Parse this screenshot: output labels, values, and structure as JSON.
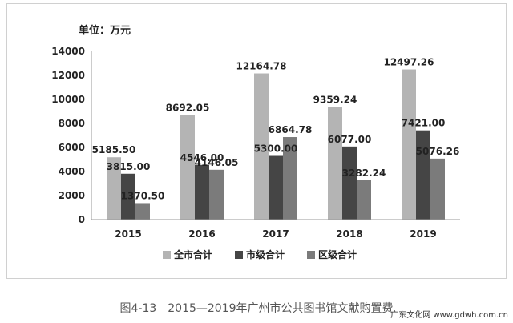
{
  "chart_data": {
    "type": "bar",
    "unit_label": "单位：万元",
    "categories": [
      "2015",
      "2016",
      "2017",
      "2018",
      "2019"
    ],
    "series": [
      {
        "name": "全市合计",
        "color": "#b4b4b4",
        "values": [
          5185.5,
          8692.05,
          12164.78,
          9359.24,
          12497.26
        ],
        "labels": [
          "5185.50",
          "8692.05",
          "12164.78",
          "9359.24",
          "12497.26"
        ]
      },
      {
        "name": "市级合计",
        "color": "#454545",
        "values": [
          3815.0,
          4546.0,
          5300.0,
          6077.0,
          7421.0
        ],
        "labels": [
          "3815.00",
          "4546.00",
          "5300.00",
          "6077.00",
          "7421.00"
        ]
      },
      {
        "name": "区级合计",
        "color": "#7b7b7b",
        "values": [
          1370.5,
          4146.05,
          6864.78,
          3282.24,
          5076.26
        ],
        "labels": [
          "1370.50",
          "4146.05",
          "6864.78",
          "3282.24",
          "5076.26"
        ]
      }
    ],
    "ylim": [
      0,
      14000
    ],
    "yticks": [
      0,
      2000,
      4000,
      6000,
      8000,
      10000,
      12000,
      14000
    ],
    "grid": false,
    "legend_position": "bottom"
  },
  "caption": "图4-13　2015—2019年广州市公共图书馆文献购置费",
  "watermark": "广东文化网 www.gdwh.com.cn"
}
